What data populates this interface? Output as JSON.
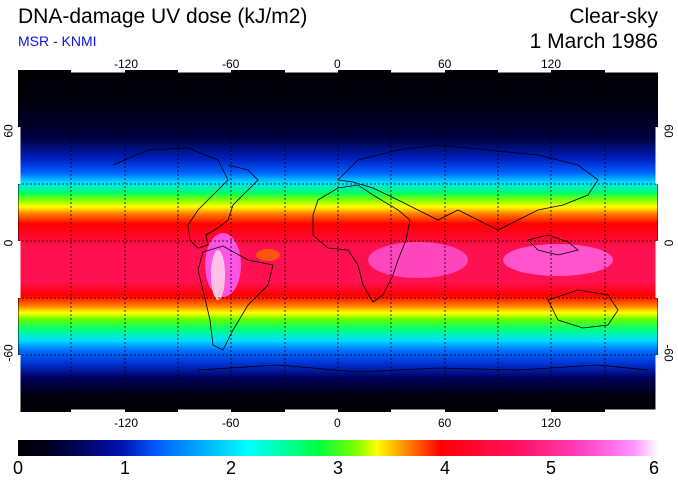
{
  "header": {
    "title": "DNA-damage UV dose (kJ/m2)",
    "subtitle": "MSR - KNMI",
    "sky_condition": "Clear-sky",
    "date": "1 March 1986"
  },
  "map": {
    "longitude_ticks": [
      "-120",
      "-60",
      "0",
      "60",
      "120"
    ],
    "latitude_ticks": [
      "60",
      "0",
      "-60"
    ],
    "longitude_range": [
      -180,
      180
    ],
    "latitude_range": [
      -90,
      90
    ],
    "grid_spacing_deg": 30,
    "projection": "equirectangular"
  },
  "colorbar": {
    "ticks": [
      "0",
      "1",
      "2",
      "3",
      "4",
      "5",
      "6"
    ],
    "range": [
      0,
      6
    ]
  },
  "colors": {
    "subtitle": "#1010e0",
    "background": "#000000"
  }
}
